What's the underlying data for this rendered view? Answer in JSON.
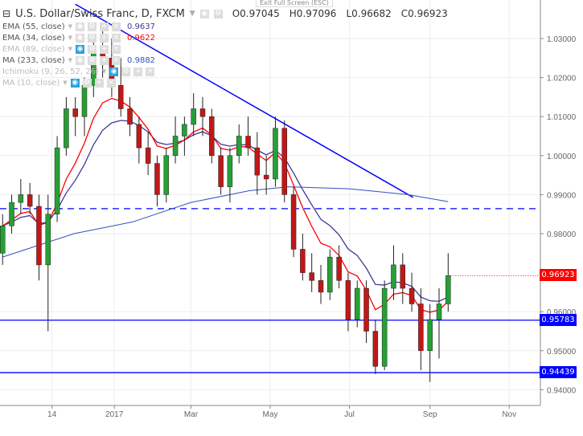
{
  "header": {
    "title": "U.S. Dollar/Swiss Franc, D, FXCM",
    "ohlc": {
      "o": "O0.97045",
      "h": "H0.97096",
      "l": "L0.96682",
      "c": "C0.96923"
    },
    "tooltip": "Exit Full Screen (ESC)"
  },
  "indicators": [
    {
      "label": "EMA (55, close)",
      "value": "0.9637",
      "color": "#3a3a9a",
      "visible": true
    },
    {
      "label": "EMA (34, close)",
      "value": "0.9622",
      "color": "#ff0000",
      "visible": true
    },
    {
      "label": "EMA (89, close)",
      "value": "",
      "visible": false
    },
    {
      "label": "MA (233, close)",
      "value": "0.9882",
      "color": "#3050c0",
      "visible": true
    },
    {
      "label": "Ichimoku (9, 26, 52, 26)",
      "value": "",
      "visible": false
    },
    {
      "label": "MA (10, close)",
      "value": "",
      "visible": false
    }
  ],
  "price_labels": {
    "last": "0.96923",
    "support1": "0.95783",
    "support2": "0.94439"
  },
  "colors": {
    "up": "#26a035",
    "down": "#c01818",
    "last": "#ff0000",
    "lines": "#0000ff"
  },
  "chart_data": {
    "type": "candlestick",
    "y_ticks": [
      "1.03000",
      "1.02000",
      "1.01000",
      "1.00000",
      "0.99000",
      "0.98000",
      "0.96000",
      "0.95000",
      "0.94000"
    ],
    "x_ticks": [
      {
        "label": "14",
        "date": "2016-11-14"
      },
      {
        "label": "2017",
        "date": "2017-01-01"
      },
      {
        "label": "Mar",
        "date": "2017-03-01"
      },
      {
        "label": "May",
        "date": "2017-05-01"
      },
      {
        "label": "Jul",
        "date": "2017-07-01"
      },
      {
        "label": "Sep",
        "date": "2017-09-01"
      },
      {
        "label": "Nov",
        "date": "2017-11-01"
      }
    ],
    "ylim": [
      0.934,
      1.0388
    ],
    "xlim": [
      "2016-10-05",
      "2017-11-25"
    ],
    "candles": [
      [
        "2016-10-07",
        0.975,
        0.985,
        0.972,
        0.982
      ],
      [
        "2016-10-14",
        0.982,
        0.99,
        0.98,
        0.988
      ],
      [
        "2016-10-21",
        0.988,
        0.994,
        0.985,
        0.99
      ],
      [
        "2016-10-28",
        0.99,
        0.993,
        0.985,
        0.987
      ],
      [
        "2016-11-04",
        0.987,
        0.99,
        0.968,
        0.972
      ],
      [
        "2016-11-11",
        0.972,
        0.99,
        0.955,
        0.985
      ],
      [
        "2016-11-18",
        0.985,
        1.005,
        0.983,
        1.002
      ],
      [
        "2016-11-25",
        1.002,
        1.015,
        1.0,
        1.012
      ],
      [
        "2016-12-02",
        1.012,
        1.015,
        1.005,
        1.01
      ],
      [
        "2016-12-09",
        1.01,
        1.02,
        1.005,
        1.018
      ],
      [
        "2016-12-16",
        1.018,
        1.03,
        1.015,
        1.028
      ],
      [
        "2016-12-23",
        1.028,
        1.034,
        1.02,
        1.025
      ],
      [
        "2016-12-30",
        1.025,
        1.03,
        1.015,
        1.018
      ],
      [
        "2017-01-06",
        1.018,
        1.025,
        1.01,
        1.012
      ],
      [
        "2017-01-13",
        1.012,
        1.015,
        1.005,
        1.008
      ],
      [
        "2017-01-20",
        1.008,
        1.01,
        0.998,
        1.002
      ],
      [
        "2017-01-27",
        1.002,
        1.006,
        0.995,
        0.998
      ],
      [
        "2017-02-03",
        0.998,
        1.0,
        0.987,
        0.99
      ],
      [
        "2017-02-10",
        0.99,
        1.002,
        0.988,
        1.0
      ],
      [
        "2017-02-17",
        1.0,
        1.01,
        0.998,
        1.005
      ],
      [
        "2017-02-24",
        1.005,
        1.01,
        1.0,
        1.008
      ],
      [
        "2017-03-03",
        1.008,
        1.016,
        1.005,
        1.012
      ],
      [
        "2017-03-10",
        1.012,
        1.015,
        1.005,
        1.01
      ],
      [
        "2017-03-17",
        1.01,
        1.012,
        0.998,
        1.0
      ],
      [
        "2017-03-24",
        1.0,
        1.002,
        0.99,
        0.992
      ],
      [
        "2017-03-31",
        0.992,
        1.002,
        0.988,
        1.0
      ],
      [
        "2017-04-07",
        1.0,
        1.008,
        0.998,
        1.005
      ],
      [
        "2017-04-14",
        1.005,
        1.01,
        1.0,
        1.002
      ],
      [
        "2017-04-21",
        1.002,
        1.006,
        0.99,
        0.995
      ],
      [
        "2017-04-28",
        0.995,
        1.0,
        0.99,
        0.994
      ],
      [
        "2017-05-05",
        0.994,
        1.01,
        0.992,
        1.007
      ],
      [
        "2017-05-12",
        1.007,
        1.009,
        0.988,
        0.99
      ],
      [
        "2017-05-19",
        0.99,
        0.992,
        0.974,
        0.976
      ],
      [
        "2017-05-26",
        0.976,
        0.98,
        0.968,
        0.97
      ],
      [
        "2017-06-02",
        0.97,
        0.975,
        0.965,
        0.968
      ],
      [
        "2017-06-09",
        0.968,
        0.972,
        0.962,
        0.965
      ],
      [
        "2017-06-16",
        0.965,
        0.976,
        0.963,
        0.974
      ],
      [
        "2017-06-23",
        0.974,
        0.977,
        0.966,
        0.968
      ],
      [
        "2017-06-30",
        0.968,
        0.97,
        0.955,
        0.958
      ],
      [
        "2017-07-07",
        0.958,
        0.968,
        0.956,
        0.966
      ],
      [
        "2017-07-14",
        0.966,
        0.968,
        0.952,
        0.955
      ],
      [
        "2017-07-21",
        0.955,
        0.958,
        0.944,
        0.946
      ],
      [
        "2017-07-28",
        0.946,
        0.968,
        0.945,
        0.966
      ],
      [
        "2017-08-04",
        0.966,
        0.977,
        0.963,
        0.972
      ],
      [
        "2017-08-11",
        0.972,
        0.975,
        0.962,
        0.966
      ],
      [
        "2017-08-18",
        0.966,
        0.97,
        0.96,
        0.962
      ],
      [
        "2017-08-25",
        0.962,
        0.966,
        0.945,
        0.95
      ],
      [
        "2017-09-01",
        0.95,
        0.962,
        0.942,
        0.958
      ],
      [
        "2017-09-08",
        0.958,
        0.966,
        0.948,
        0.962
      ],
      [
        "2017-09-15",
        0.962,
        0.975,
        0.96,
        0.96923
      ]
    ],
    "ma233": [
      [
        "2016-10-07",
        0.974
      ],
      [
        "2016-12-01",
        0.98
      ],
      [
        "2017-01-15",
        0.983
      ],
      [
        "2017-03-01",
        0.988
      ],
      [
        "2017-04-15",
        0.991
      ],
      [
        "2017-05-15",
        0.992
      ],
      [
        "2017-07-01",
        0.9915
      ],
      [
        "2017-08-15",
        0.99
      ],
      [
        "2017-09-15",
        0.9882
      ]
    ],
    "hlines": [
      {
        "price": 0.9864,
        "style": "dashed"
      },
      {
        "price": 0.95783,
        "style": "solid"
      },
      {
        "price": 0.94439,
        "style": "solid"
      }
    ],
    "trendline": [
      [
        "2016-12-02",
        1.0388
      ],
      [
        "2017-08-19",
        0.9893
      ]
    ]
  }
}
